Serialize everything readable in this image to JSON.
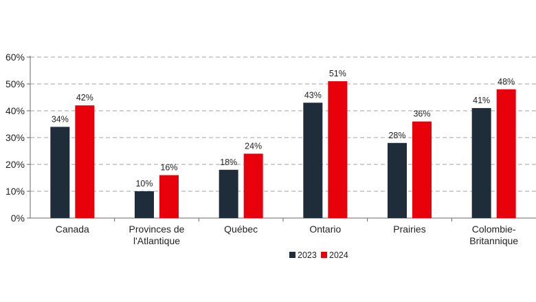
{
  "chart_data": {
    "type": "bar",
    "categories": [
      [
        "Canada"
      ],
      [
        "Provinces de",
        "l'Atlantique"
      ],
      [
        "Québec"
      ],
      [
        "Ontario"
      ],
      [
        "Prairies"
      ],
      [
        "Colombie-",
        "Britannique"
      ]
    ],
    "series": [
      {
        "name": "2023",
        "values": [
          34,
          10,
          18,
          43,
          28,
          41
        ],
        "labels": [
          "34%",
          "10%",
          "18%",
          "43%",
          "28%",
          "41%"
        ],
        "color": "#1f2d3a"
      },
      {
        "name": "2024",
        "values": [
          42,
          16,
          24,
          51,
          36,
          48
        ],
        "labels": [
          "42%",
          "16%",
          "24%",
          "51%",
          "36%",
          "48%"
        ],
        "color": "#e8000b"
      }
    ],
    "yticks": [
      0,
      10,
      20,
      30,
      40,
      50,
      60
    ],
    "ytick_labels": [
      "0%",
      "10%",
      "20%",
      "30%",
      "40%",
      "50%",
      "60%"
    ],
    "ylim": [
      0,
      60
    ],
    "grid": true,
    "legend_position": "bottom-center",
    "title": "",
    "xlabel": "",
    "ylabel": ""
  }
}
